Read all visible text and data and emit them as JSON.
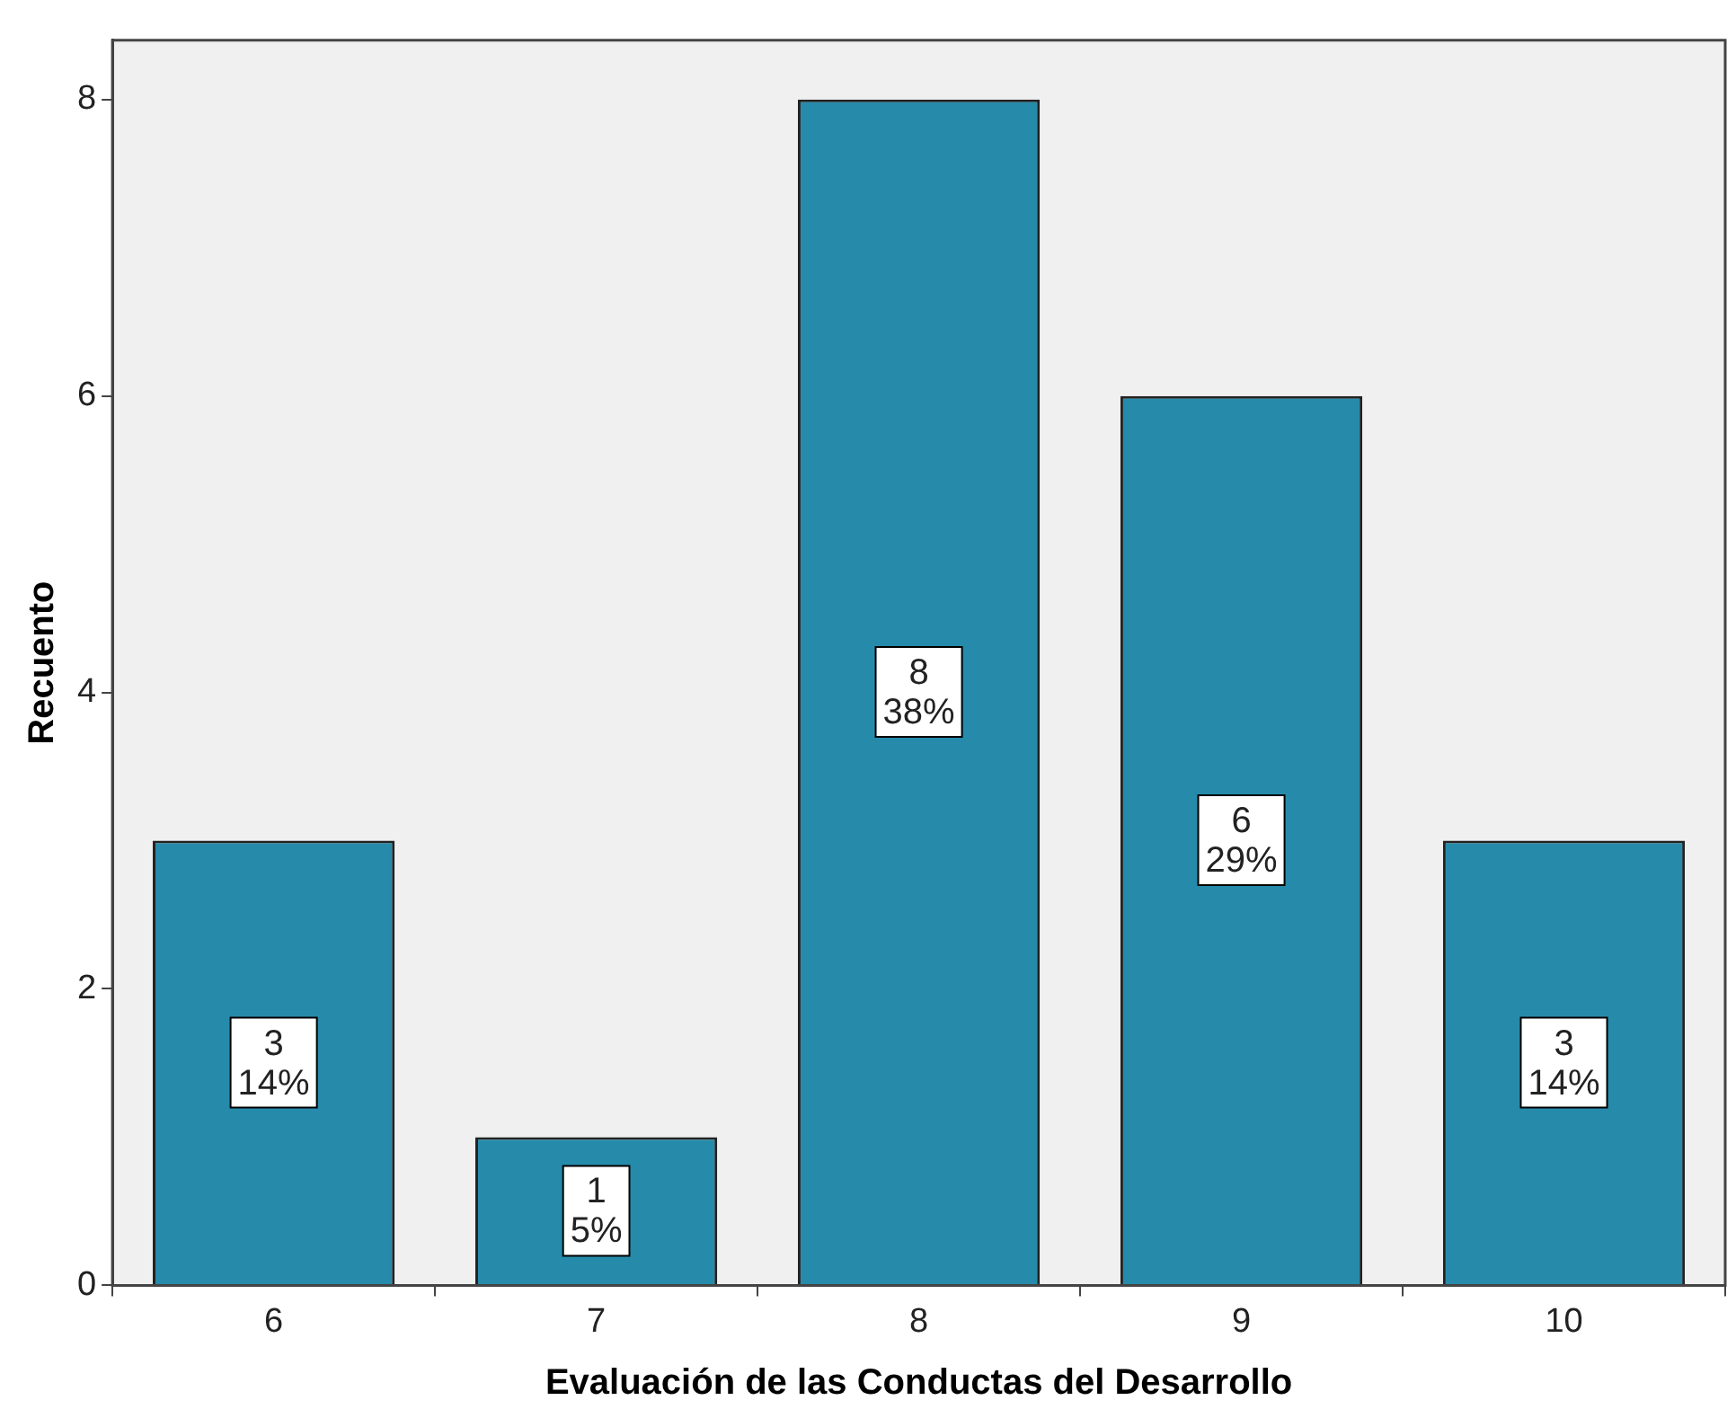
{
  "chart_data": {
    "type": "bar",
    "xlabel": "Evaluación de las Conductas del Desarrollo",
    "ylabel": "Recuento",
    "categories": [
      "6",
      "7",
      "8",
      "9",
      "10"
    ],
    "values": [
      3,
      1,
      8,
      6,
      3
    ],
    "value_labels": [
      "3\n14%",
      "1\n5%",
      "8\n38%",
      "6\n29%",
      "3\n14%"
    ],
    "color": "#268bab",
    "ylim": [
      0,
      8.4
    ],
    "yticks": [
      0,
      2,
      4,
      6,
      8
    ],
    "grid": false,
    "legend": false
  }
}
